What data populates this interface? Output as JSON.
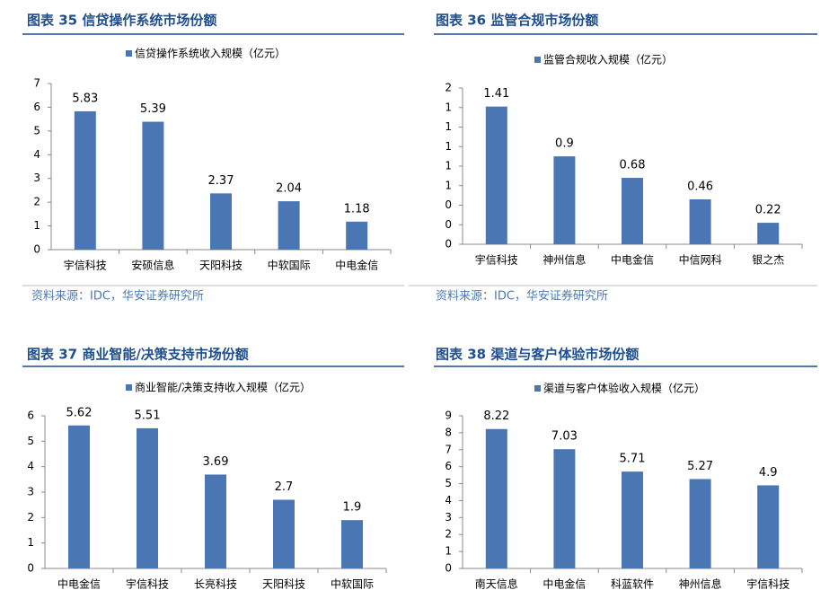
{
  "chart_data": [
    {
      "type": "bar",
      "title": "图表 35 信贷操作系统市场份额",
      "categories": [
        "宇信科技",
        "安硕信息",
        "天阳科技",
        "中软国际",
        "中电金信"
      ],
      "series": [
        {
          "name": "信贷操作系统收入规模（亿元）",
          "color": "#4a76b3",
          "values": [
            5.83,
            5.39,
            2.37,
            2.04,
            1.18
          ]
        }
      ],
      "ylim": [
        0,
        7
      ],
      "yticks": [
        0,
        1,
        2,
        3,
        4,
        5,
        6,
        7
      ],
      "source": "资料来源：IDC，华安证券研究所"
    },
    {
      "type": "bar",
      "title": "图表 36 监管合规市场份额",
      "categories": [
        "宇信科技",
        "神州信息",
        "中电金信",
        "中信网科",
        "银之杰"
      ],
      "series": [
        {
          "name": "监管合规收入规模（亿元）",
          "color": "#4a76b3",
          "values": [
            1.41,
            0.9,
            0.68,
            0.46,
            0.22
          ]
        }
      ],
      "ylim": [
        0,
        1.6
      ],
      "yticks": [
        0,
        {
          "value": 0.2,
          "label": "0"
        },
        {
          "value": 0.4,
          "label": "0"
        },
        {
          "value": 0.6,
          "label": "1"
        },
        {
          "value": 0.8,
          "label": "1"
        },
        1,
        {
          "value": 1.2,
          "label": "1"
        },
        {
          "value": 1.4,
          "label": "1"
        },
        {
          "value": 1.6,
          "label": "2"
        }
      ],
      "source": "资料来源：IDC，华安证券研究所"
    },
    {
      "type": "bar",
      "title": "图表 37 商业智能/决策支持市场份额",
      "categories": [
        "中电金信",
        "宇信科技",
        "长亮科技",
        "天阳科技",
        "中软国际"
      ],
      "series": [
        {
          "name": "商业智能/决策支持收入规模（亿元）",
          "color": "#4a76b3",
          "values": [
            5.62,
            5.51,
            3.69,
            2.7,
            1.9
          ]
        }
      ],
      "ylim": [
        0,
        6
      ],
      "yticks": [
        0,
        1,
        2,
        3,
        4,
        5,
        6
      ]
    },
    {
      "type": "bar",
      "title": "图表 38 渠道与客户体验市场份额",
      "categories": [
        "南天信息",
        "中电金信",
        "科蓝软件",
        "神州信息",
        "宇信科技"
      ],
      "series": [
        {
          "name": "渠道与客户体验收入规模（亿元）",
          "color": "#4a76b3",
          "values": [
            8.22,
            7.03,
            5.71,
            5.27,
            4.9
          ]
        }
      ],
      "ylim": [
        0,
        9
      ],
      "yticks": [
        0,
        1,
        2,
        3,
        4,
        5,
        6,
        7,
        8,
        9
      ]
    }
  ]
}
